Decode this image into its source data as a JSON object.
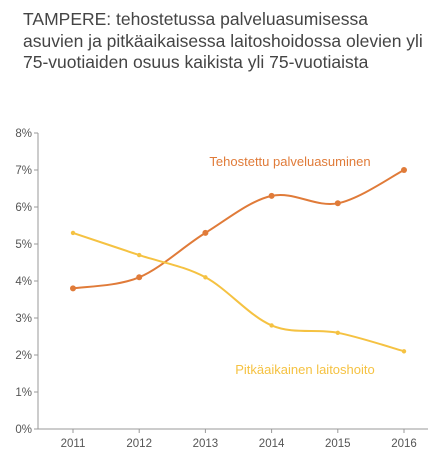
{
  "title": "TAMPERE: tehostetussa palveluasumisessa asuvien ja pitkäaikaisessa laitoshoidossa olevien yli 75-vuotiaiden osuus kaikista yli 75-vuotiaista",
  "chart_data": {
    "type": "line",
    "title": "TAMPERE: tehostetussa palveluasumisessa asuvien ja pitkäaikaisessa laitoshoidossa olevien yli 75-vuotiaiden osuus kaikista yli 75-vuotiaista",
    "xlabel": "",
    "ylabel": "",
    "x": [
      "2011",
      "2012",
      "2013",
      "2014",
      "2015",
      "2016"
    ],
    "ylim": [
      0,
      8
    ],
    "yticks": [
      "0%",
      "1%",
      "2%",
      "3%",
      "4%",
      "5%",
      "6%",
      "7%",
      "8%"
    ],
    "grid": false,
    "series": [
      {
        "name": "Tehostettu palveluasuminen",
        "values": [
          3.8,
          4.1,
          5.3,
          6.3,
          6.1,
          7.0
        ],
        "color": "#e07b39",
        "markers": true
      },
      {
        "name": "Pitkäaikainen laitoshoito",
        "values": [
          5.3,
          4.7,
          4.1,
          2.8,
          2.6,
          2.1
        ],
        "color": "#f5c242",
        "markers": false
      }
    ]
  }
}
